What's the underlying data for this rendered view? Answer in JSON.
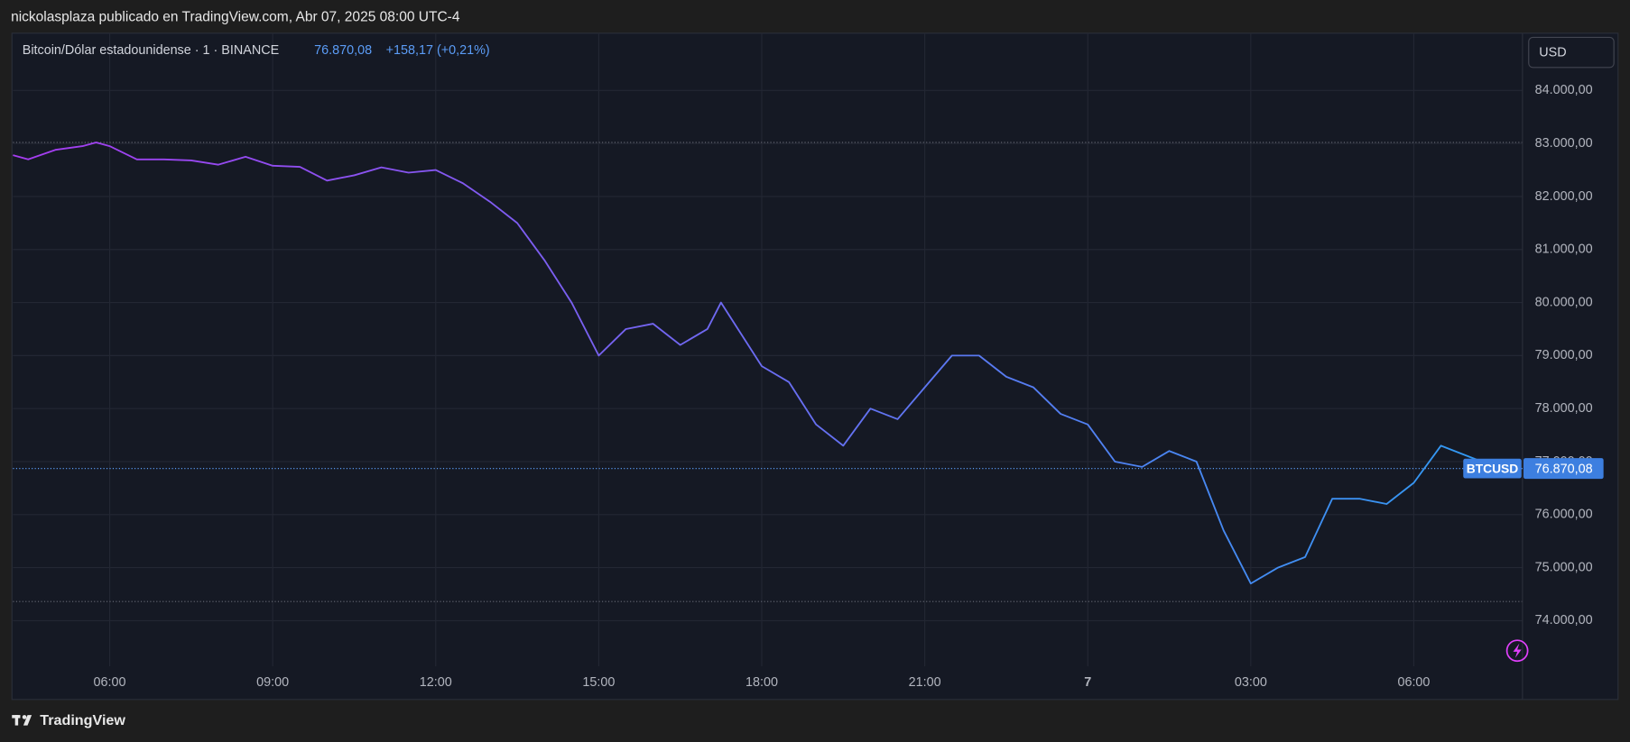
{
  "header": "nickolasplaza publicado en TradingView.com, Abr 07, 2025 08:00 UTC-4",
  "footer": "TradingView",
  "chart_data": {
    "type": "line",
    "title": "Bitcoin/Dólar estadounidense · 1 · BINANCE",
    "last_price": 76870.08,
    "last_price_label": "76.870,08",
    "change_label": "+158,17 (+0,21%)",
    "currency": "USD",
    "x": [
      4.22,
      4.5,
      5,
      5.5,
      5.75,
      6,
      6.5,
      7,
      7.5,
      8,
      8.5,
      9,
      9.5,
      10,
      10.5,
      11,
      11.5,
      12,
      12.5,
      13,
      13.5,
      14,
      14.5,
      15,
      15.5,
      16,
      16.5,
      17,
      17.25,
      17.5,
      18,
      18.5,
      19,
      19.5,
      20,
      20.5,
      21,
      21.5,
      22,
      22.5,
      23,
      23.5,
      24,
      24.5,
      25,
      25.5,
      26,
      26.5,
      27,
      27.5,
      28,
      28.5,
      29,
      29.5,
      30,
      30.5,
      31,
      31.5,
      31.86
    ],
    "series": [
      {
        "name": "BTCUSD",
        "values": [
          82780,
          82700,
          82880,
          82950,
          83020,
          82950,
          82700,
          82700,
          82680,
          82600,
          82750,
          82580,
          82560,
          82300,
          82400,
          82550,
          82450,
          82500,
          82250,
          81900,
          81500,
          80800,
          80000,
          79000,
          79500,
          79600,
          79200,
          79500,
          80000,
          79600,
          78800,
          78500,
          77700,
          77300,
          78000,
          77800,
          78400,
          79000,
          79000,
          78600,
          78400,
          77900,
          77700,
          77000,
          76900,
          77200,
          77000,
          75700,
          74700,
          75000,
          75200,
          76300,
          76300,
          76200,
          76600,
          77300,
          77100,
          76900,
          76870.08
        ]
      }
    ],
    "gradient": [
      "#a63cf0",
      "#2e9cf2"
    ],
    "hlines": [
      83020,
      74360
    ],
    "xlim": [
      4.22,
      32.0
    ],
    "xticks": [
      {
        "value": 6,
        "label": "06:00"
      },
      {
        "value": 9,
        "label": "09:00"
      },
      {
        "value": 12,
        "label": "12:00"
      },
      {
        "value": 15,
        "label": "15:00"
      },
      {
        "value": 18,
        "label": "18:00"
      },
      {
        "value": 21,
        "label": "21:00"
      },
      {
        "value": 24,
        "label": "7"
      },
      {
        "value": 27,
        "label": "03:00"
      },
      {
        "value": 30,
        "label": "06:00"
      }
    ],
    "ylim": [
      73140,
      85080
    ],
    "yticks": [
      {
        "value": 74000,
        "label": "74.000,00"
      },
      {
        "value": 75000,
        "label": "75.000,00"
      },
      {
        "value": 76000,
        "label": "76.000,00"
      },
      {
        "value": 77000,
        "label": "77.000,00"
      },
      {
        "value": 78000,
        "label": "78.000,00"
      },
      {
        "value": 79000,
        "label": "79.000,00"
      },
      {
        "value": 80000,
        "label": "80.000,00"
      },
      {
        "value": 81000,
        "label": "81.000,00"
      },
      {
        "value": 82000,
        "label": "82.000,00"
      },
      {
        "value": 83000,
        "label": "83.000,00"
      },
      {
        "value": 84000,
        "label": "84.000,00"
      }
    ],
    "grid": true
  }
}
